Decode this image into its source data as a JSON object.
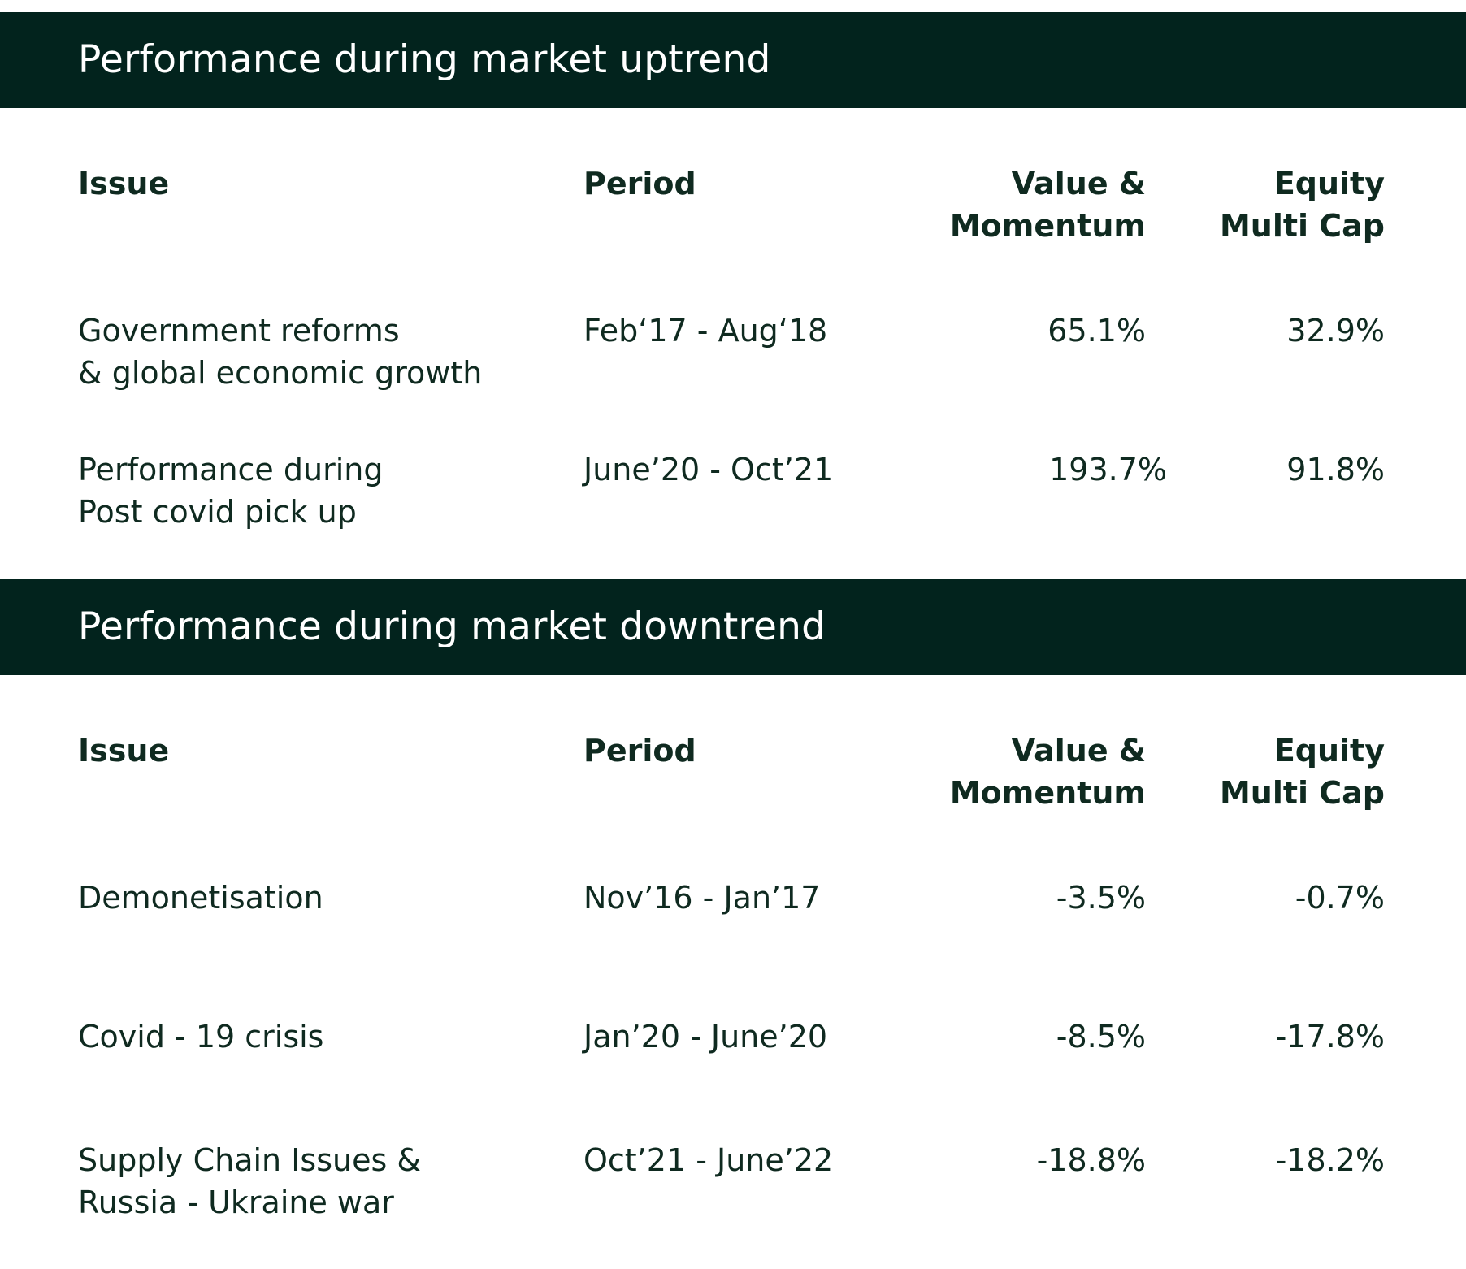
{
  "uptrend": {
    "title": "Performance during market uptrend",
    "headers": {
      "issue": "Issue",
      "period": "Period",
      "value_momentum": "Value &\nMomentum",
      "equity_multi_cap": "Equity\nMulti Cap"
    },
    "rows": [
      {
        "issue": "Government reforms\n& global economic growth",
        "period": "Feb‘17 - Aug‘18",
        "value_momentum": "65.1%",
        "equity_multi_cap": "32.9%"
      },
      {
        "issue": "Performance during\nPost covid pick up",
        "period": "June’20 - Oct’21",
        "value_momentum": "193.7%",
        "equity_multi_cap": "91.8%"
      }
    ]
  },
  "downtrend": {
    "title": "Performance during market downtrend",
    "headers": {
      "issue": "Issue",
      "period": "Period",
      "value_momentum": "Value &\nMomentum",
      "equity_multi_cap": "Equity\nMulti Cap"
    },
    "rows": [
      {
        "issue": "Demonetisation",
        "period": "Nov’16 - Jan’17",
        "value_momentum": "-3.5%",
        "equity_multi_cap": "-0.7%"
      },
      {
        "issue": "Covid - 19 crisis",
        "period": "Jan’20 - June’20",
        "value_momentum": "-8.5%",
        "equity_multi_cap": "-17.8%"
      },
      {
        "issue": "Supply Chain Issues &\nRussia - Ukraine war",
        "period": "Oct’21 - June’22",
        "value_momentum": "-18.8%",
        "equity_multi_cap": "-18.2%"
      }
    ]
  }
}
